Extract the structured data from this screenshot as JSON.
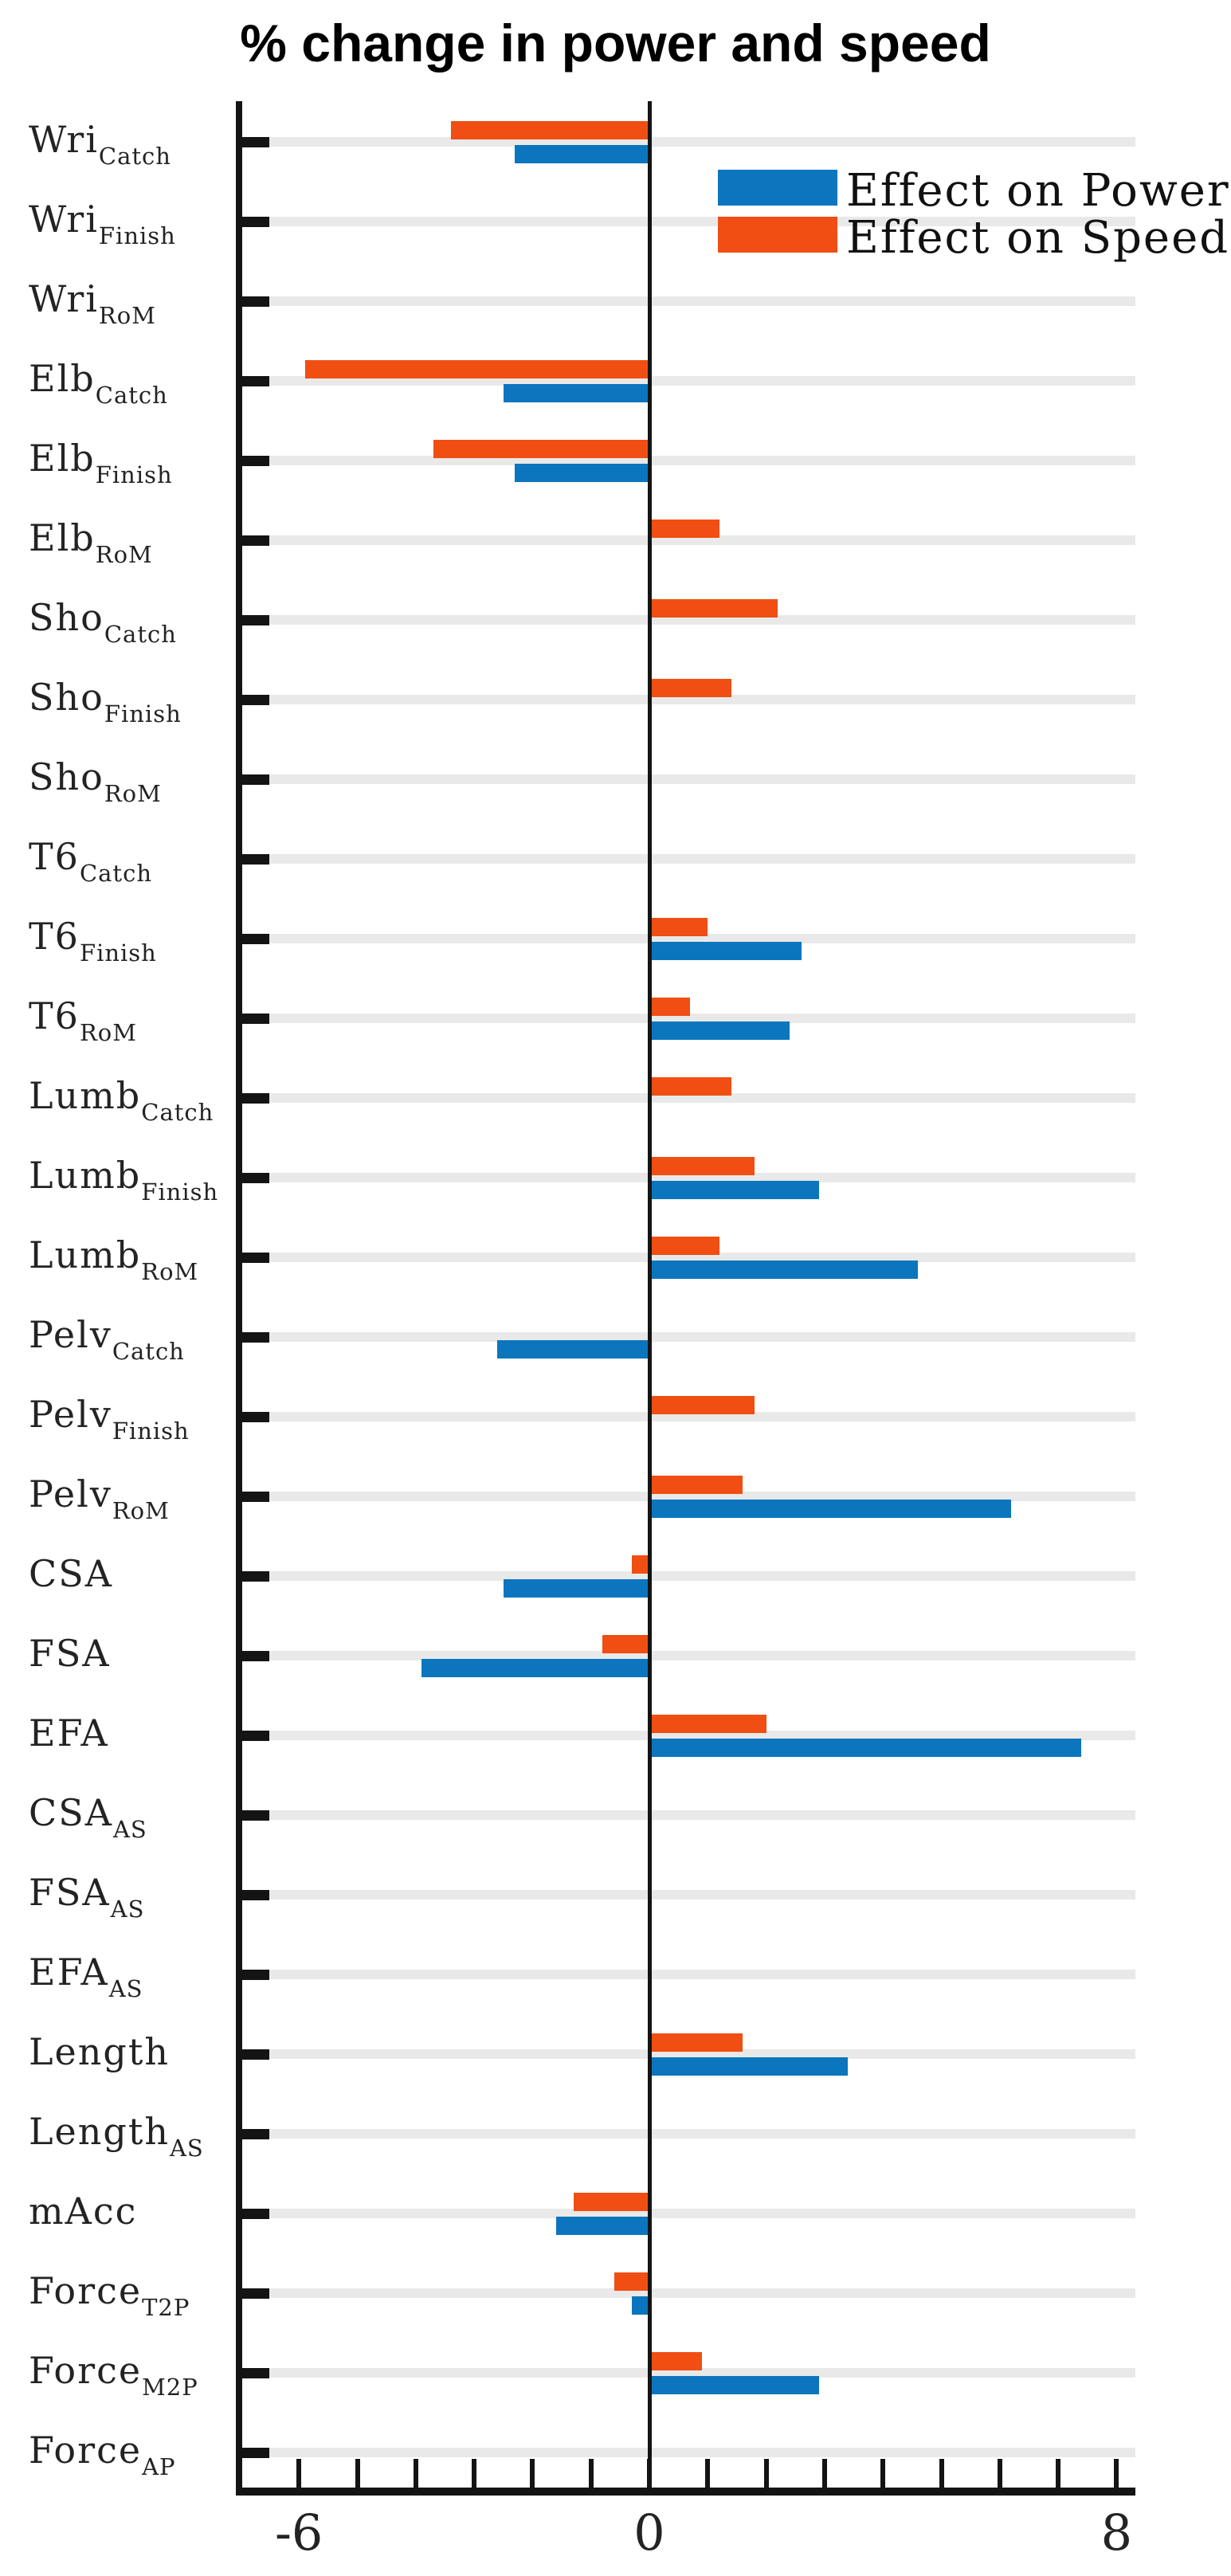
{
  "title": "% change in power and speed",
  "legend": {
    "items": [
      {
        "label": "Effect on Power",
        "series": "power",
        "color": "#0B76BD"
      },
      {
        "label": "Effect on Speed",
        "series": "speed",
        "color": "#F04E12"
      }
    ]
  },
  "x_axis": {
    "labeled_ticks": [
      {
        "value": -6,
        "label": "-6"
      },
      {
        "value": 0,
        "label": "0"
      },
      {
        "value": 8,
        "label": "8"
      }
    ],
    "minor_tick_step": 1,
    "range": [
      -7,
      8.3
    ]
  },
  "colors": {
    "power": "#0B76BD",
    "speed": "#F04E12",
    "grid": "#e9e9e9",
    "axis": "#141414"
  },
  "chart_data": {
    "type": "bar",
    "orientation": "horizontal",
    "title": "% change in power and speed",
    "xlabel": "",
    "ylabel": "",
    "xlim": [
      -7,
      8.3
    ],
    "grid": "on",
    "legend_position": "upper-right-inside",
    "categories": [
      {
        "base": "Wri",
        "sub": "Catch"
      },
      {
        "base": "Wri",
        "sub": "Finish"
      },
      {
        "base": "Wri",
        "sub": "RoM"
      },
      {
        "base": "Elb",
        "sub": "Catch"
      },
      {
        "base": "Elb",
        "sub": "Finish"
      },
      {
        "base": "Elb",
        "sub": "RoM"
      },
      {
        "base": "Sho",
        "sub": "Catch"
      },
      {
        "base": "Sho",
        "sub": "Finish"
      },
      {
        "base": "Sho",
        "sub": "RoM"
      },
      {
        "base": "T6",
        "sub": "Catch"
      },
      {
        "base": "T6",
        "sub": "Finish"
      },
      {
        "base": "T6",
        "sub": "RoM"
      },
      {
        "base": "Lumb",
        "sub": "Catch"
      },
      {
        "base": "Lumb",
        "sub": "Finish"
      },
      {
        "base": "Lumb",
        "sub": "RoM"
      },
      {
        "base": "Pelv",
        "sub": "Catch"
      },
      {
        "base": "Pelv",
        "sub": "Finish"
      },
      {
        "base": "Pelv",
        "sub": "RoM"
      },
      {
        "base": "CSA",
        "sub": ""
      },
      {
        "base": "FSA",
        "sub": ""
      },
      {
        "base": "EFA",
        "sub": ""
      },
      {
        "base": "CSA",
        "sub": "AS"
      },
      {
        "base": "FSA",
        "sub": "AS"
      },
      {
        "base": "EFA",
        "sub": "AS"
      },
      {
        "base": "Length",
        "sub": ""
      },
      {
        "base": "Length",
        "sub": "AS"
      },
      {
        "base": "mAcc",
        "sub": ""
      },
      {
        "base": "Force",
        "sub": "T2P"
      },
      {
        "base": "Force",
        "sub": "M2P"
      },
      {
        "base": "Force",
        "sub": "AP"
      }
    ],
    "series": [
      {
        "name": "Effect on Power",
        "color": "#0B76BD",
        "values": [
          -2.3,
          0,
          0,
          -2.5,
          -2.3,
          0,
          0,
          0,
          0,
          0,
          2.6,
          2.4,
          0,
          2.9,
          4.6,
          -2.6,
          0,
          6.2,
          -2.5,
          -3.9,
          7.4,
          0,
          0,
          0,
          3.4,
          0,
          -1.6,
          -0.3,
          2.9,
          0
        ]
      },
      {
        "name": "Effect on Speed",
        "color": "#F04E12",
        "values": [
          -3.4,
          0,
          0,
          -5.9,
          -3.7,
          1.2,
          2.2,
          1.4,
          0,
          0,
          1.0,
          0.7,
          1.4,
          1.8,
          1.2,
          0,
          1.8,
          1.6,
          -0.3,
          -0.8,
          2.0,
          0,
          0,
          0,
          1.6,
          0,
          -1.3,
          -0.6,
          0.9,
          0
        ]
      }
    ]
  }
}
